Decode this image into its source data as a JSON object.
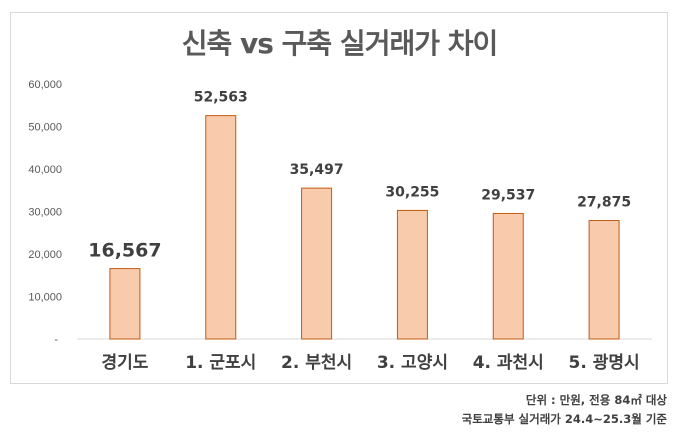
{
  "chart_data": {
    "type": "bar",
    "title": "신축 vs 구축 실거래가 차이",
    "categories": [
      "경기도",
      "1. 군포시",
      "2. 부천시",
      "3. 고양시",
      "4. 과천시",
      "5. 광명시"
    ],
    "values": [
      16567,
      52563,
      35497,
      30255,
      29537,
      27875
    ],
    "data_labels": [
      "16,567",
      "52,563",
      "35,497",
      "30,255",
      "29,537",
      "27,875"
    ],
    "ylim": [
      0,
      60000
    ],
    "yticks": [
      0,
      10000,
      20000,
      30000,
      40000,
      50000,
      60000
    ],
    "ytick_labels": [
      "-",
      "10,000",
      "20,000",
      "30,000",
      "40,000",
      "50,000",
      "60,000"
    ],
    "grid": false,
    "colors": {
      "bar_fill": "#f8cbad",
      "bar_stroke": "#c55a11",
      "text": "#404040",
      "title": "#595959"
    }
  },
  "notes": {
    "unit": "단위 : 만원, 전용 84㎡ 대상",
    "source": "국토교통부 실거래가 24.4~25.3월 기준"
  }
}
